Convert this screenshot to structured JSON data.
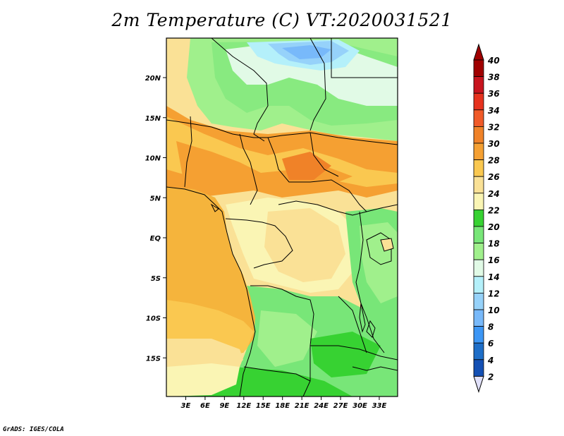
{
  "title": "2m Temperature (C) VT:2020031521",
  "credit": "GrADS: IGES/COLA",
  "map": {
    "lat_labels": [
      {
        "label": "20N",
        "lat": 20
      },
      {
        "label": "15N",
        "lat": 15
      },
      {
        "label": "10N",
        "lat": 10
      },
      {
        "label": "5N",
        "lat": 5
      },
      {
        "label": "EQ",
        "lat": 0
      },
      {
        "label": "5S",
        "lat": -5
      },
      {
        "label": "10S",
        "lat": -10
      },
      {
        "label": "15S",
        "lat": -15
      }
    ],
    "lon_labels": [
      {
        "label": "3E",
        "lon": 3
      },
      {
        "label": "6E",
        "lon": 6
      },
      {
        "label": "9E",
        "lon": 9
      },
      {
        "label": "12E",
        "lon": 12
      },
      {
        "label": "15E",
        "lon": 15
      },
      {
        "label": "18E",
        "lon": 18
      },
      {
        "label": "21E",
        "lon": 21
      },
      {
        "label": "24E",
        "lon": 24
      },
      {
        "label": "27E",
        "lon": 27
      },
      {
        "label": "30E",
        "lon": 30
      },
      {
        "label": "33E",
        "lon": 33
      }
    ]
  },
  "colorbar": {
    "labels": [
      "40",
      "38",
      "36",
      "34",
      "32",
      "30",
      "28",
      "26",
      "24",
      "22",
      "20",
      "18",
      "16",
      "14",
      "12",
      "10",
      "8",
      "6",
      "4",
      "2"
    ],
    "colors": [
      "#a00000",
      "#c8141e",
      "#e6321e",
      "#f05a28",
      "#f08228",
      "#f5a032",
      "#fac850",
      "#fae196",
      "#faf5b4",
      "#37d232",
      "#78e678",
      "#a0f08c",
      "#e1fae6",
      "#b4f0fa",
      "#96d2fa",
      "#78b9fa",
      "#3c96f5",
      "#1e6ec8",
      "#1450b4",
      "#0a1e78"
    ],
    "top_arrow_color": "#a00000",
    "bottom_arrow_color": "#e1e1fa"
  }
}
